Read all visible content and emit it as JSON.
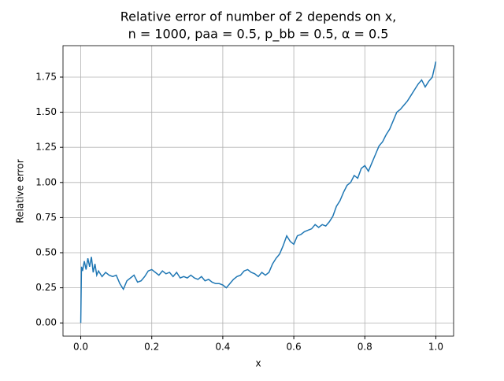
{
  "chart_data": {
    "type": "line",
    "title": [
      "Relative error of number of 2 depends on x,",
      "n = 1000, paa = 0.5, p_bb = 0.5, α = 0.5"
    ],
    "xlabel": "x",
    "ylabel": "Relative error",
    "xlim": [
      -0.05,
      1.05
    ],
    "ylim": [
      -0.094,
      1.974
    ],
    "xticks": [
      {
        "value": 0,
        "label": "0.0"
      },
      {
        "value": 0.2,
        "label": "0.2"
      },
      {
        "value": 0.4,
        "label": "0.4"
      },
      {
        "value": 0.6,
        "label": "0.6"
      },
      {
        "value": 0.8,
        "label": "0.8"
      },
      {
        "value": 1,
        "label": "1.0"
      }
    ],
    "yticks": [
      {
        "value": 0,
        "label": "0.00"
      },
      {
        "value": 0.25,
        "label": "0.25"
      },
      {
        "value": 0.5,
        "label": "0.50"
      },
      {
        "value": 0.75,
        "label": "0.75"
      },
      {
        "value": 1,
        "label": "1.00"
      },
      {
        "value": 1.25,
        "label": "1.25"
      },
      {
        "value": 1.5,
        "label": "1.50"
      },
      {
        "value": 1.75,
        "label": "1.75"
      }
    ],
    "grid": true,
    "x": [
      0,
      0.002,
      0.005,
      0.01,
      0.015,
      0.02,
      0.025,
      0.03,
      0.035,
      0.04,
      0.045,
      0.05,
      0.06,
      0.07,
      0.08,
      0.09,
      0.1,
      0.11,
      0.12,
      0.13,
      0.14,
      0.15,
      0.16,
      0.17,
      0.18,
      0.19,
      0.2,
      0.21,
      0.22,
      0.23,
      0.24,
      0.25,
      0.26,
      0.27,
      0.28,
      0.29,
      0.3,
      0.31,
      0.32,
      0.33,
      0.34,
      0.35,
      0.36,
      0.37,
      0.38,
      0.39,
      0.4,
      0.41,
      0.42,
      0.43,
      0.44,
      0.45,
      0.46,
      0.47,
      0.48,
      0.49,
      0.5,
      0.51,
      0.52,
      0.53,
      0.54,
      0.55,
      0.56,
      0.57,
      0.58,
      0.59,
      0.6,
      0.61,
      0.62,
      0.63,
      0.64,
      0.65,
      0.66,
      0.67,
      0.68,
      0.69,
      0.7,
      0.71,
      0.72,
      0.73,
      0.74,
      0.75,
      0.76,
      0.77,
      0.78,
      0.79,
      0.8,
      0.81,
      0.82,
      0.83,
      0.84,
      0.85,
      0.86,
      0.87,
      0.88,
      0.89,
      0.9,
      0.91,
      0.92,
      0.93,
      0.94,
      0.95,
      0.96,
      0.97,
      0.98,
      0.99,
      1
    ],
    "series": [
      {
        "color": "#1f77b4",
        "values": [
          0,
          0.4,
          0.37,
          0.44,
          0.38,
          0.46,
          0.4,
          0.47,
          0.36,
          0.42,
          0.34,
          0.37,
          0.33,
          0.36,
          0.34,
          0.33,
          0.34,
          0.28,
          0.24,
          0.3,
          0.32,
          0.34,
          0.29,
          0.3,
          0.33,
          0.37,
          0.38,
          0.36,
          0.34,
          0.37,
          0.35,
          0.36,
          0.33,
          0.36,
          0.32,
          0.33,
          0.32,
          0.34,
          0.32,
          0.31,
          0.33,
          0.3,
          0.31,
          0.29,
          0.28,
          0.28,
          0.27,
          0.25,
          0.28,
          0.31,
          0.33,
          0.34,
          0.37,
          0.38,
          0.36,
          0.35,
          0.33,
          0.36,
          0.34,
          0.36,
          0.42,
          0.46,
          0.49,
          0.55,
          0.62,
          0.58,
          0.56,
          0.62,
          0.63,
          0.65,
          0.66,
          0.67,
          0.7,
          0.68,
          0.7,
          0.69,
          0.72,
          0.76,
          0.83,
          0.87,
          0.93,
          0.98,
          1,
          1.05,
          1.03,
          1.1,
          1.12,
          1.08,
          1.14,
          1.2,
          1.26,
          1.29,
          1.34,
          1.38,
          1.44,
          1.5,
          1.52,
          1.55,
          1.58,
          1.62,
          1.66,
          1.7,
          1.73,
          1.68,
          1.72,
          1.75,
          1.86
        ]
      }
    ]
  }
}
